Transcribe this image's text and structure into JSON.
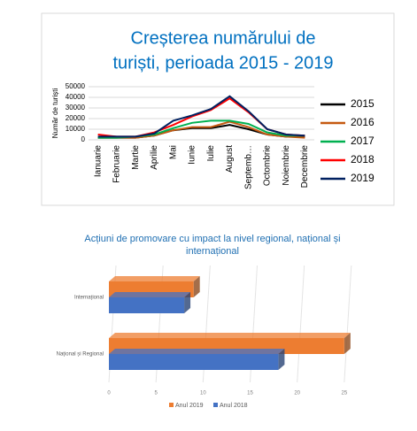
{
  "chart_data": [
    {
      "type": "line",
      "title": [
        "Creșterea numărului de",
        "turiști, perioada 2015 - 2019"
      ],
      "y_label": "Număr de turiști",
      "categories": [
        "Ianuarie",
        "Februarie",
        "Martie",
        "Aprilie",
        "Mai",
        "Iunie",
        "Iulie",
        "August",
        "Septemb…",
        "Octombrie",
        "Noiembrie",
        "Decembrie"
      ],
      "series": [
        {
          "name": "2015",
          "color": "#000000",
          "values": [
            2000,
            2000,
            2000,
            4000,
            9000,
            11000,
            11000,
            14000,
            10000,
            5000,
            3000,
            3000
          ]
        },
        {
          "name": "2016",
          "color": "#c55a11",
          "values": [
            2000,
            2000,
            2000,
            4000,
            9000,
            12000,
            12000,
            17000,
            12000,
            5000,
            3000,
            2000
          ]
        },
        {
          "name": "2017",
          "color": "#00b050",
          "values": [
            2000,
            2000,
            3000,
            5000,
            11000,
            16000,
            18000,
            18000,
            15000,
            7000,
            4000,
            4000
          ]
        },
        {
          "name": "2018",
          "color": "#ff0000",
          "values": [
            5000,
            3000,
            3000,
            7000,
            14000,
            22000,
            28000,
            39000,
            26000,
            10000,
            5000,
            4000
          ]
        },
        {
          "name": "2019",
          "color": "#002060",
          "values": [
            3000,
            3000,
            3000,
            6000,
            18000,
            23000,
            29000,
            41000,
            27000,
            10000,
            5000,
            4000
          ]
        }
      ],
      "ylim": [
        0,
        50000
      ],
      "yticks": [
        0,
        10000,
        20000,
        30000,
        40000,
        50000
      ],
      "grid": true,
      "legend": "right"
    },
    {
      "type": "hbar",
      "title": [
        "Acțiuni de promovare cu impact la nivel regional, național și",
        "internațional"
      ],
      "categories": [
        "Internațional",
        "Național și Regional"
      ],
      "series": [
        {
          "name": "Anul 2019",
          "color": "#ed7d31",
          "values": [
            9,
            25
          ]
        },
        {
          "name": "Anul 2018",
          "color": "#4472c4",
          "values": [
            8,
            18
          ]
        }
      ],
      "xlim": [
        0,
        30
      ],
      "xticks": [
        0,
        5,
        10,
        15,
        20,
        25
      ],
      "grid": true,
      "legend": "bottom"
    }
  ]
}
